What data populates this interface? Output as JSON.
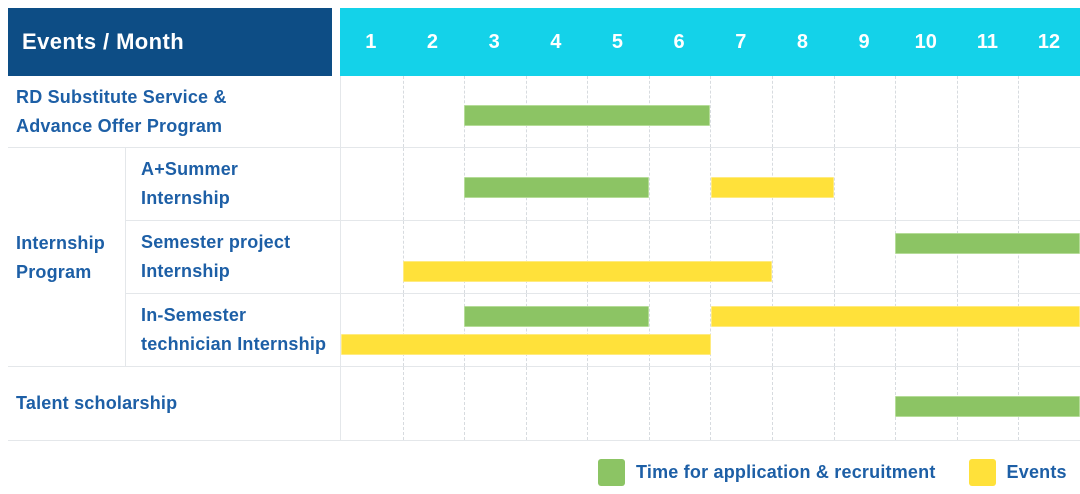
{
  "colors": {
    "header_bg": "#0d4d85",
    "months_bg": "#14d2e9",
    "bar_green": "#8cc464",
    "bar_green_border": "#b5dc98",
    "bar_yellow": "#ffe13a",
    "bar_yellow_border": "#ffeb80",
    "label_text": "#1d5fa6",
    "header_text": "#ffffff",
    "grid_line": "#e4e7ea",
    "grid_dash": "#d7dbdf",
    "background": "#ffffff"
  },
  "chart_data": {
    "type": "gantt",
    "title": "Events / Month",
    "x_axis_unit": "month",
    "months": [
      "1",
      "2",
      "3",
      "4",
      "5",
      "6",
      "7",
      "8",
      "9",
      "10",
      "11",
      "12"
    ],
    "x_range": [
      1,
      12
    ],
    "grid": "dashed-vertical-per-month",
    "group_label": "Internship\nProgram",
    "legend_position": "bottom-right",
    "legend": [
      {
        "key": "application",
        "label": "Time for application & recruitment",
        "color": "#8cc464"
      },
      {
        "key": "event",
        "label": "Events",
        "color": "#ffe13a"
      }
    ],
    "rows": [
      {
        "label": "RD Substitute Service &\nAdvance Offer Program",
        "group": null,
        "bars": [
          {
            "type": "application",
            "start_month": 3,
            "end_month": 6,
            "lane": "single"
          }
        ]
      },
      {
        "label": "A+Summer\nInternship",
        "group": "Internship Program",
        "bars": [
          {
            "type": "application",
            "start_month": 3,
            "end_month": 5,
            "lane": "single"
          },
          {
            "type": "event",
            "start_month": 7,
            "end_month": 8,
            "lane": "single"
          }
        ]
      },
      {
        "label": "Semester project\nInternship",
        "group": "Internship Program",
        "bars": [
          {
            "type": "application",
            "start_month": 10,
            "end_month": 12,
            "lane": "top"
          },
          {
            "type": "event",
            "start_month": 2,
            "end_month": 7,
            "lane": "bottom"
          }
        ]
      },
      {
        "label": "In-Semester\ntechnician Internship",
        "group": "Internship Program",
        "bars": [
          {
            "type": "application",
            "start_month": 3,
            "end_month": 5,
            "lane": "top"
          },
          {
            "type": "event",
            "start_month": 7,
            "end_month": 12,
            "lane": "top"
          },
          {
            "type": "event",
            "start_month": 1,
            "end_month": 6,
            "lane": "bottom"
          }
        ]
      },
      {
        "label": "Talent scholarship",
        "group": null,
        "bars": [
          {
            "type": "application",
            "start_month": 10,
            "end_month": 12,
            "lane": "single"
          }
        ]
      }
    ]
  }
}
